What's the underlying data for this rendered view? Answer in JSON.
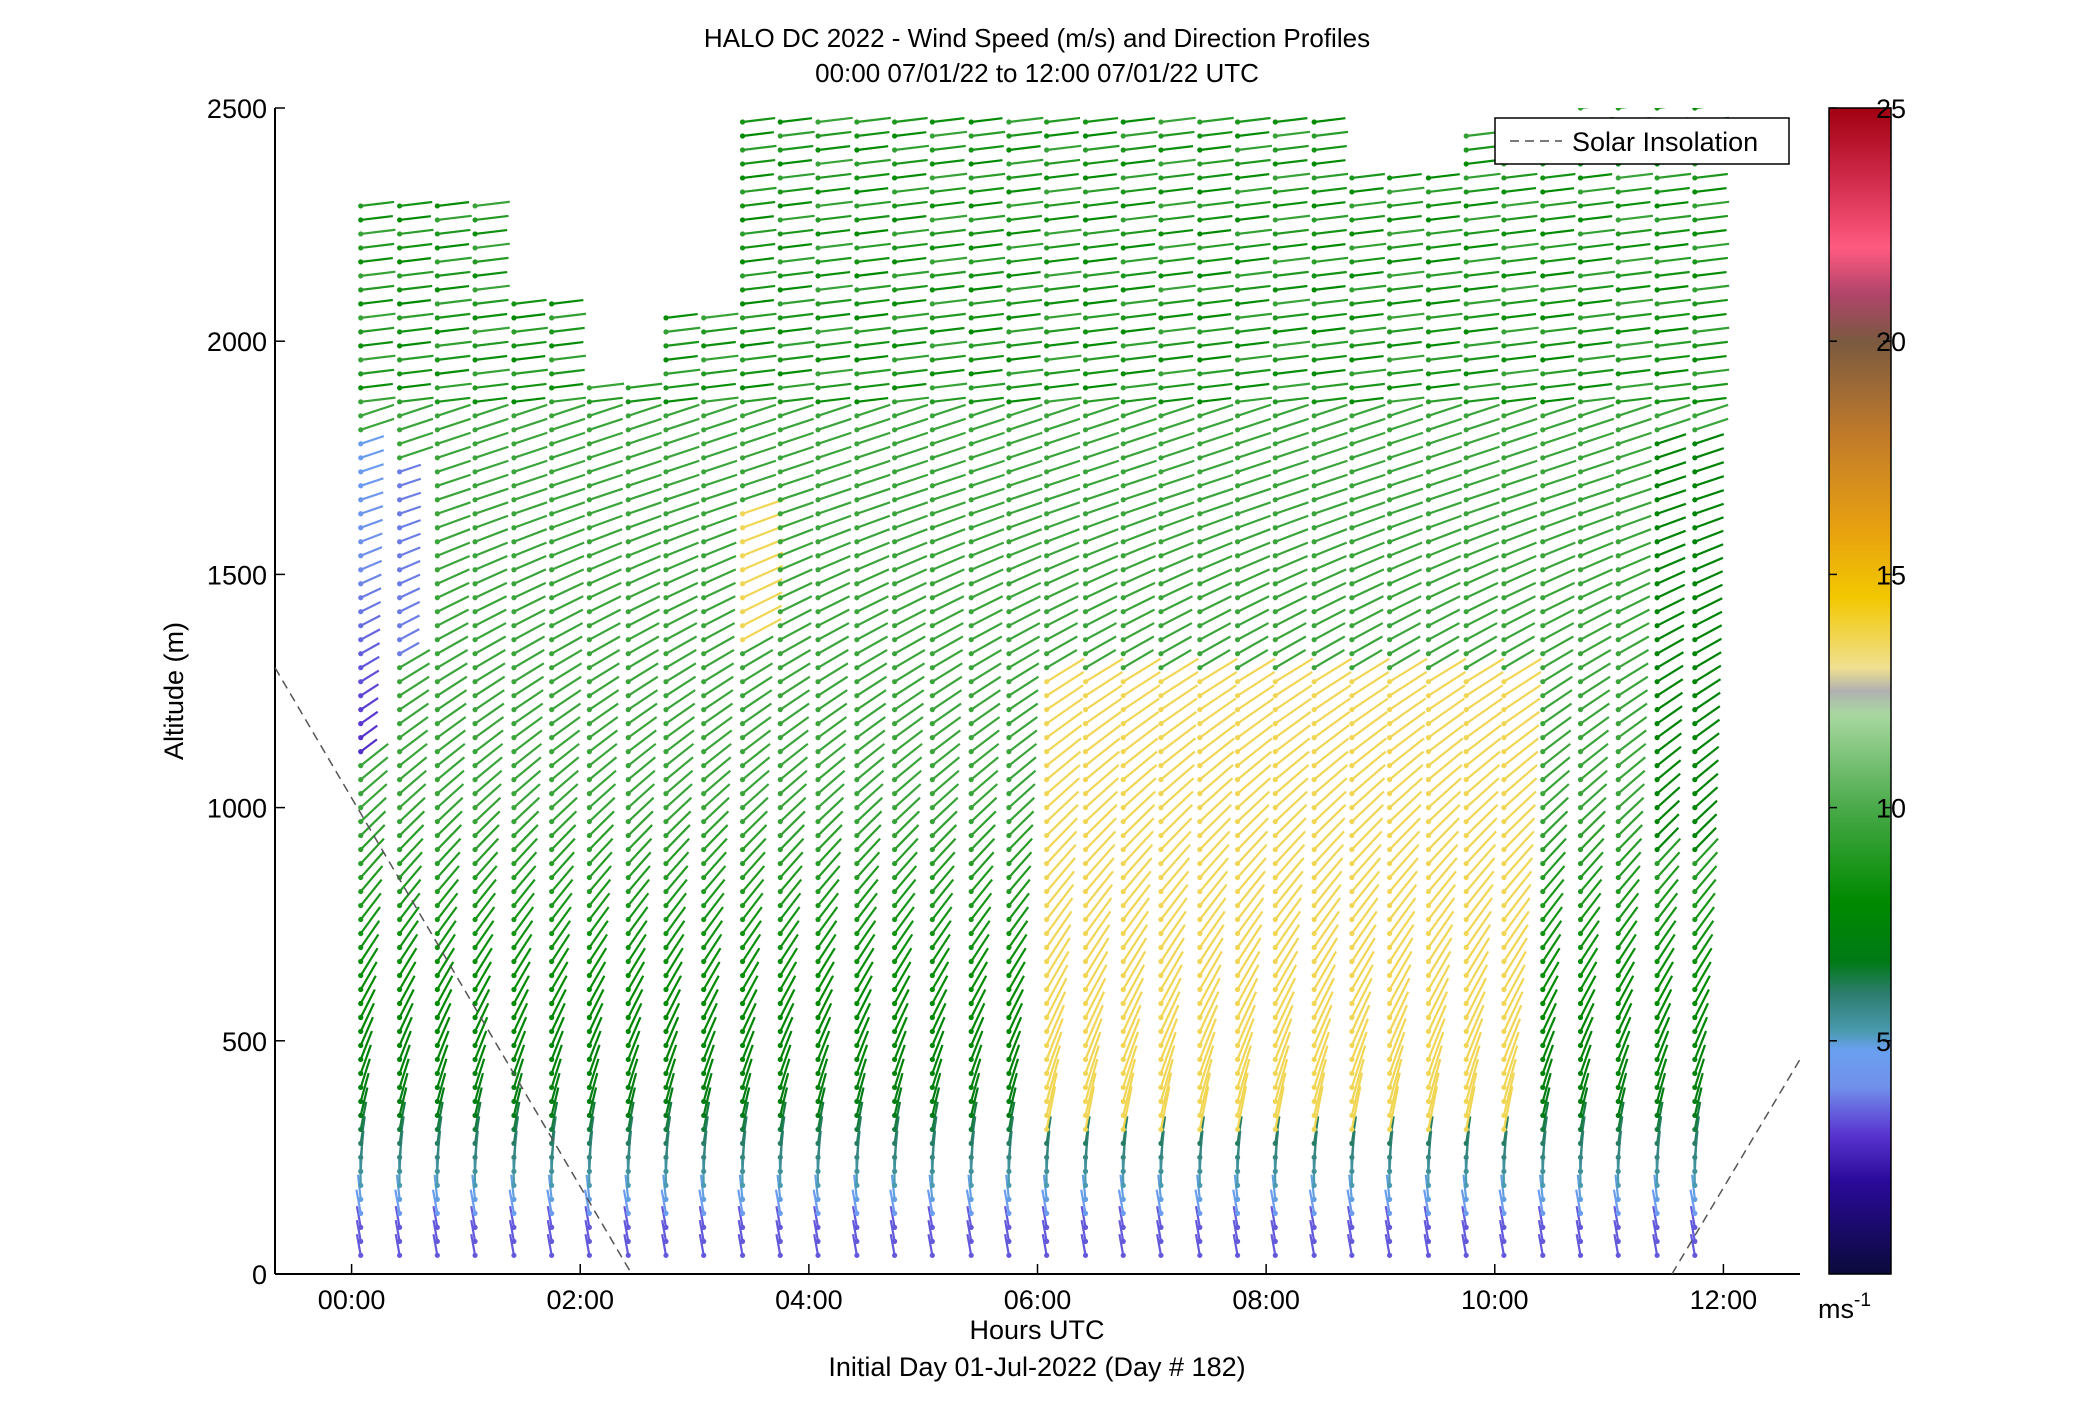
{
  "chart_data": {
    "type": "wind-barb-profile",
    "title": "HALO DC 2022 - Wind Speed (m/s) and Direction Profiles",
    "subtitle": "00:00 07/01/22 to 12:00 07/01/22  UTC",
    "xlabel": "Hours UTC",
    "xlabel2": "Initial Day 01-Jul-2022 (Day # 182)",
    "ylabel": "Altitude (m)",
    "xlim": [
      -0.67,
      12.67
    ],
    "ylim": [
      0,
      2500
    ],
    "x_ticks": [
      0,
      2,
      4,
      6,
      8,
      10,
      12
    ],
    "x_tick_labels": [
      "00:00",
      "02:00",
      "04:00",
      "06:00",
      "08:00",
      "10:00",
      "12:00"
    ],
    "y_ticks": [
      0,
      500,
      1000,
      1500,
      2000,
      2500
    ],
    "y_tick_labels": [
      "0",
      "500",
      "1000",
      "1500",
      "2000",
      "2500"
    ],
    "legend": {
      "entries": [
        "Solar Insolation"
      ],
      "placement": "top-right",
      "line_style": "dashed",
      "line_color": "#7a7a7a"
    },
    "colorbar": {
      "range": [
        0,
        25
      ],
      "ticks": [
        5,
        10,
        15,
        20,
        25
      ],
      "tick_labels": [
        "5",
        "10",
        "15",
        "20",
        "25"
      ],
      "unit_label": "ms",
      "unit_exponent": "-1",
      "stops": [
        {
          "v": 0,
          "c": "#0a0a3a"
        },
        {
          "v": 2,
          "c": "#2a0a9a"
        },
        {
          "v": 3,
          "c": "#5a35d0"
        },
        {
          "v": 4,
          "c": "#7090ea"
        },
        {
          "v": 4.8,
          "c": "#6aa0f0"
        },
        {
          "v": 5.2,
          "c": "#4a9ab0"
        },
        {
          "v": 6,
          "c": "#2e7e70"
        },
        {
          "v": 6.7,
          "c": "#007a15"
        },
        {
          "v": 8,
          "c": "#008a00"
        },
        {
          "v": 10,
          "c": "#4aaa4a"
        },
        {
          "v": 12,
          "c": "#a8d8a0"
        },
        {
          "v": 12.5,
          "c": "#b0b0b0"
        },
        {
          "v": 13,
          "c": "#f0e090"
        },
        {
          "v": 14.5,
          "c": "#f2c800"
        },
        {
          "v": 16,
          "c": "#e8a010"
        },
        {
          "v": 18,
          "c": "#c07a2a"
        },
        {
          "v": 20,
          "c": "#7a5a40"
        },
        {
          "v": 21,
          "c": "#b0446a"
        },
        {
          "v": 22,
          "c": "#ff5a80"
        },
        {
          "v": 23.5,
          "c": "#d02a4a"
        },
        {
          "v": 25,
          "c": "#a00010"
        }
      ]
    },
    "solar_insolation_lines": [
      {
        "x": [
          -0.67,
          2.45
        ],
        "y": [
          1300,
          0
        ]
      },
      {
        "x": [
          11.55,
          12.67
        ],
        "y": [
          0,
          460
        ]
      }
    ],
    "profile_times_hours": [
      0.08,
      0.42,
      0.75,
      1.08,
      1.42,
      1.75,
      2.08,
      2.42,
      2.75,
      3.08,
      3.42,
      3.75,
      4.08,
      4.42,
      4.75,
      5.08,
      5.42,
      5.75,
      6.08,
      6.42,
      6.75,
      7.08,
      7.42,
      7.75,
      8.08,
      8.42,
      8.75,
      9.08,
      9.42,
      9.75,
      10.08,
      10.42,
      10.75,
      11.08,
      11.42,
      11.75
    ],
    "altitude_step_m": 30,
    "wind_field_summary": {
      "near_surface_speed_ms": 3.5,
      "boundary_layer_speed_ms": 9,
      "midlevel_jet_speed_ms": 14,
      "midlevel_jet_time_range_hours": [
        6,
        10
      ],
      "midlevel_jet_altitude_range_m": [
        300,
        1300
      ],
      "upper_level_speed_ms": 8,
      "upper_level_direction": "westerly",
      "low_level_direction": "southerly"
    }
  }
}
